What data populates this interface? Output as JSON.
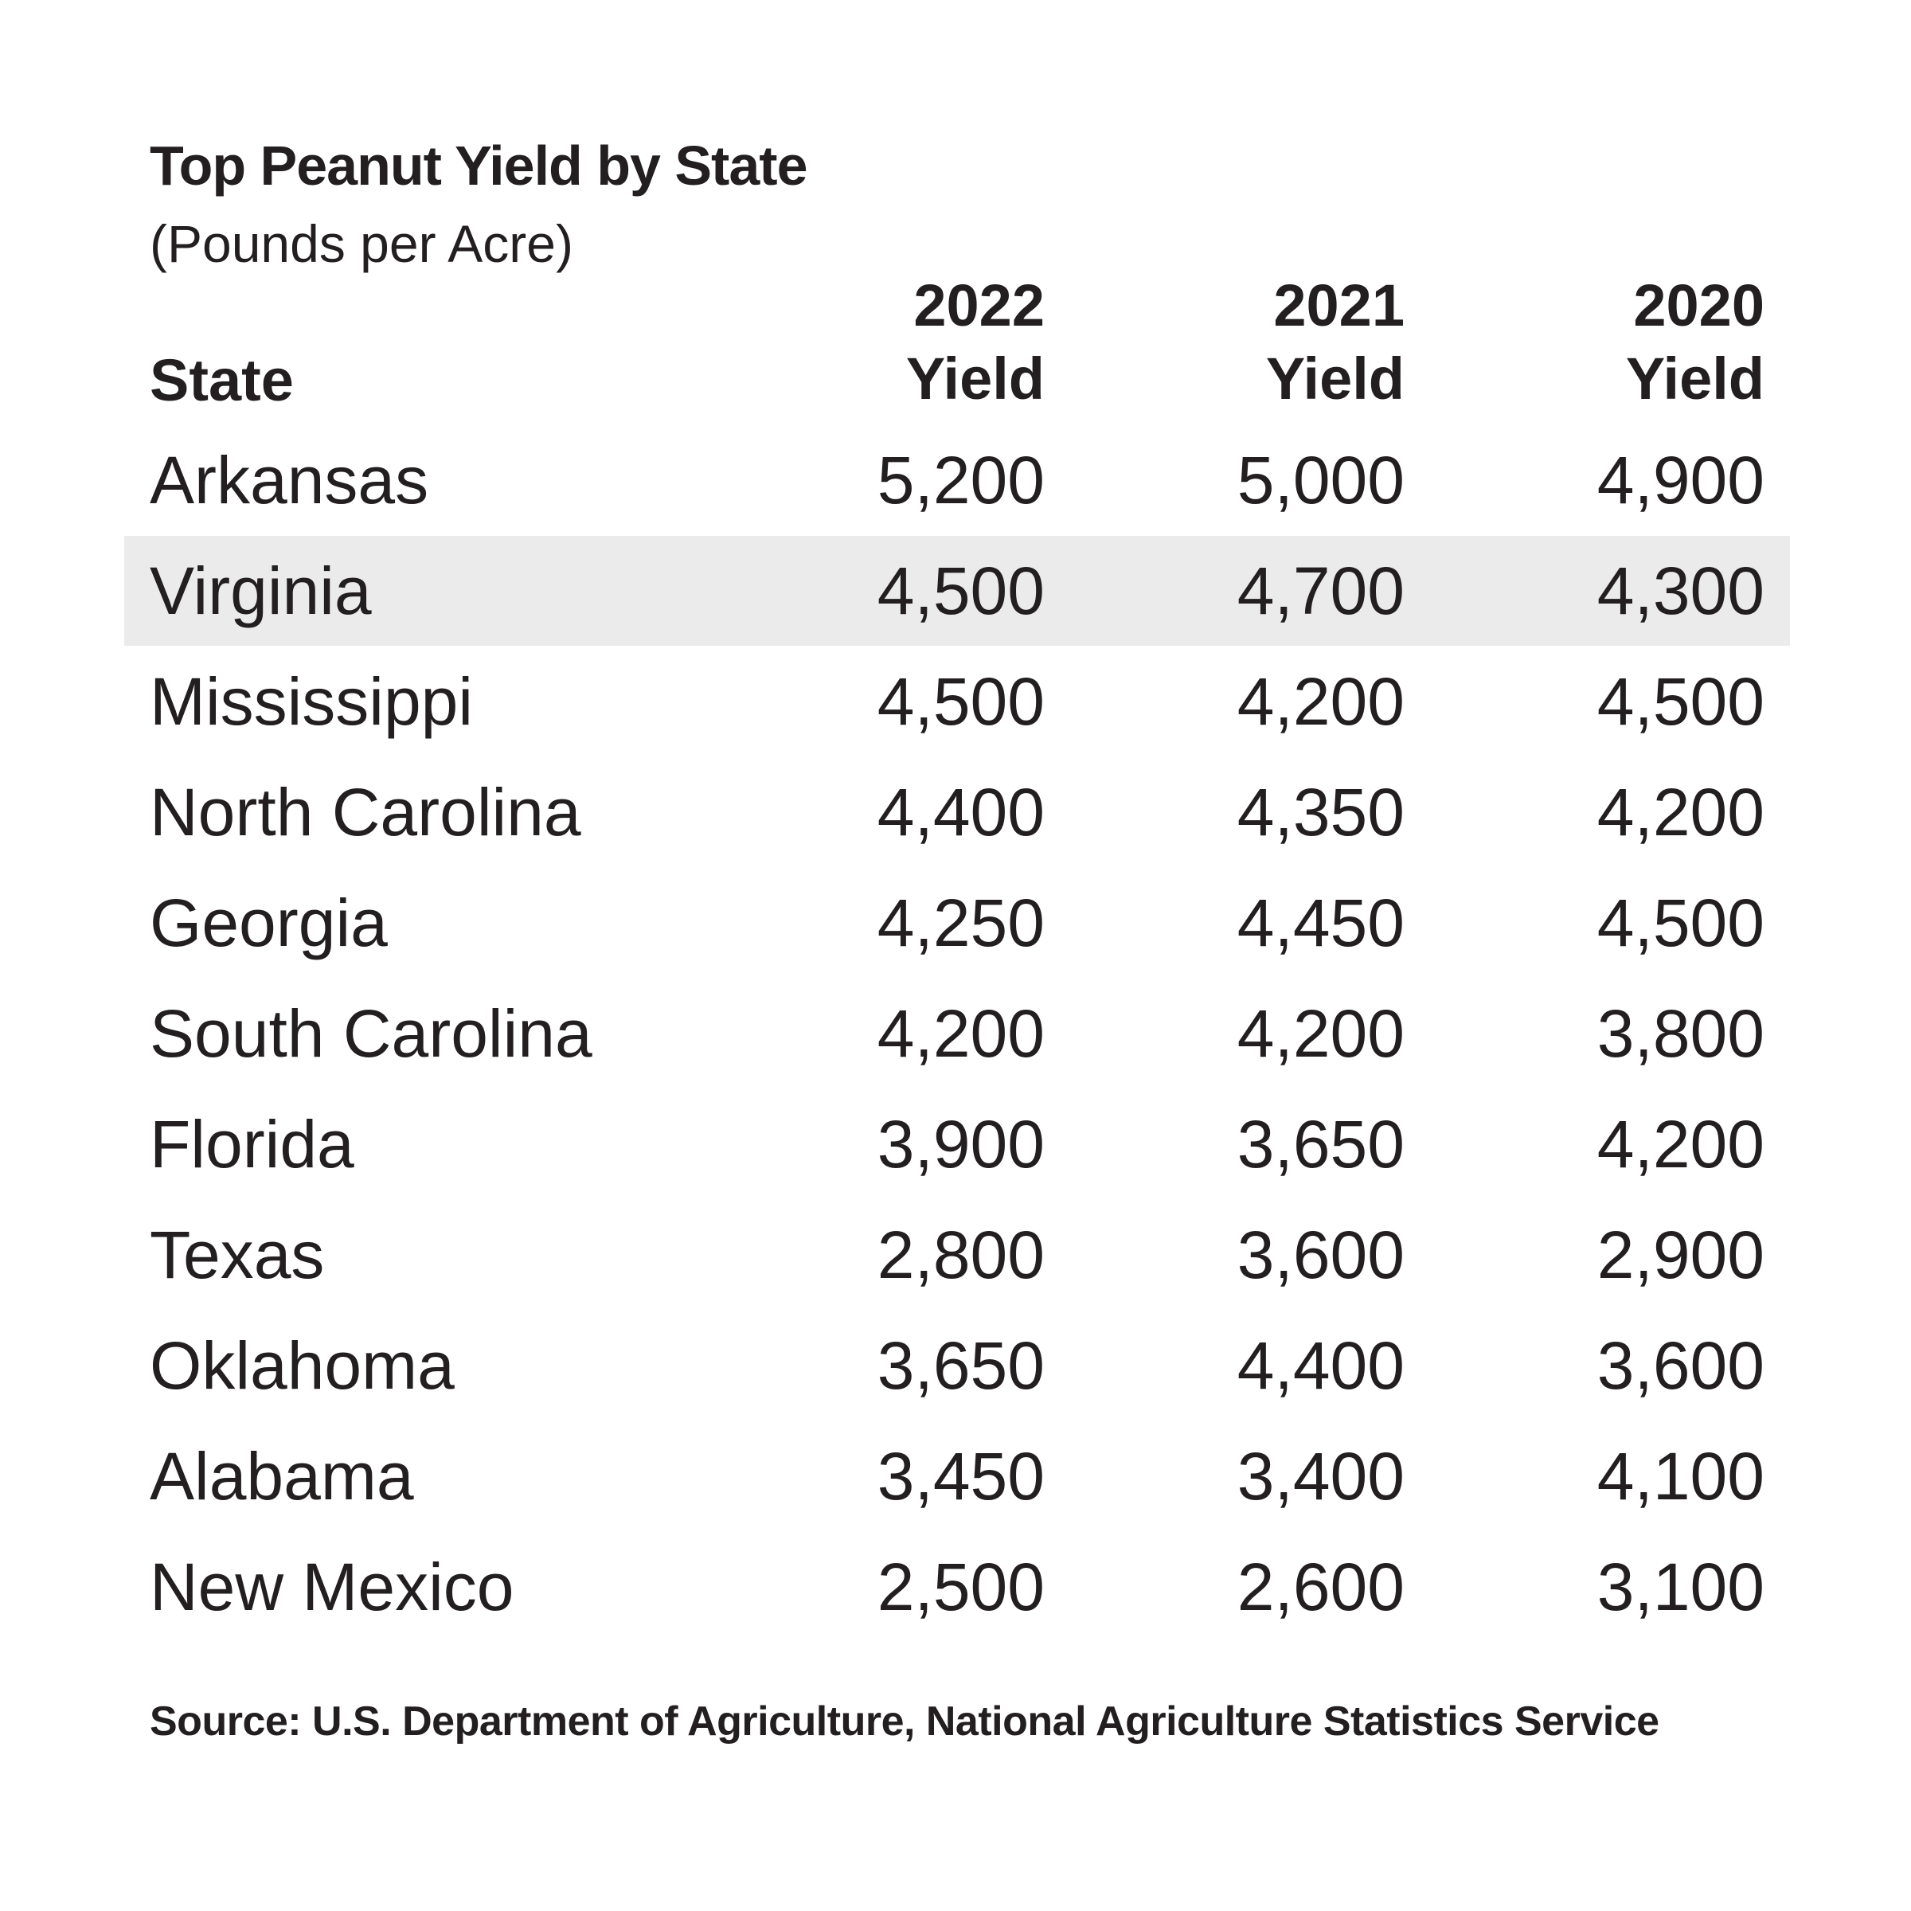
{
  "chart_data": {
    "type": "table",
    "title": "Top Peanut Yield by State",
    "subtitle": "(Pounds per Acre)",
    "columns": [
      {
        "key": "state",
        "label": "State"
      },
      {
        "key": "y2022",
        "label_top": "2022",
        "label_bottom": "Yield"
      },
      {
        "key": "y2021",
        "label_top": "2021",
        "label_bottom": "Yield"
      },
      {
        "key": "y2020",
        "label_top": "2020",
        "label_bottom": "Yield"
      }
    ],
    "rows": [
      {
        "state": "Arkansas",
        "y2022": "5,200",
        "y2021": "5,000",
        "y2020": "4,900",
        "highlight": false
      },
      {
        "state": "Virginia",
        "y2022": "4,500",
        "y2021": "4,700",
        "y2020": "4,300",
        "highlight": true
      },
      {
        "state": "Mississippi",
        "y2022": "4,500",
        "y2021": "4,200",
        "y2020": "4,500",
        "highlight": false
      },
      {
        "state": "North Carolina",
        "y2022": "4,400",
        "y2021": "4,350",
        "y2020": "4,200",
        "highlight": false
      },
      {
        "state": "Georgia",
        "y2022": "4,250",
        "y2021": "4,450",
        "y2020": "4,500",
        "highlight": false
      },
      {
        "state": "South Carolina",
        "y2022": "4,200",
        "y2021": "4,200",
        "y2020": "3,800",
        "highlight": false
      },
      {
        "state": "Florida",
        "y2022": "3,900",
        "y2021": "3,650",
        "y2020": "4,200",
        "highlight": false
      },
      {
        "state": "Texas",
        "y2022": "2,800",
        "y2021": "3,600",
        "y2020": "2,900",
        "highlight": false
      },
      {
        "state": "Oklahoma",
        "y2022": "3,650",
        "y2021": "4,400",
        "y2020": "3,600",
        "highlight": false
      },
      {
        "state": "Alabama",
        "y2022": "3,450",
        "y2021": "3,400",
        "y2020": "4,100",
        "highlight": false
      },
      {
        "state": "New Mexico",
        "y2022": "2,500",
        "y2021": "2,600",
        "y2020": "3,100",
        "highlight": false
      }
    ],
    "source": "Source: U.S. Department of Agriculture, National Agriculture Statistics Service"
  },
  "colors": {
    "text": "#231f20",
    "highlight_band": "#ebebeb",
    "background": "#ffffff"
  }
}
